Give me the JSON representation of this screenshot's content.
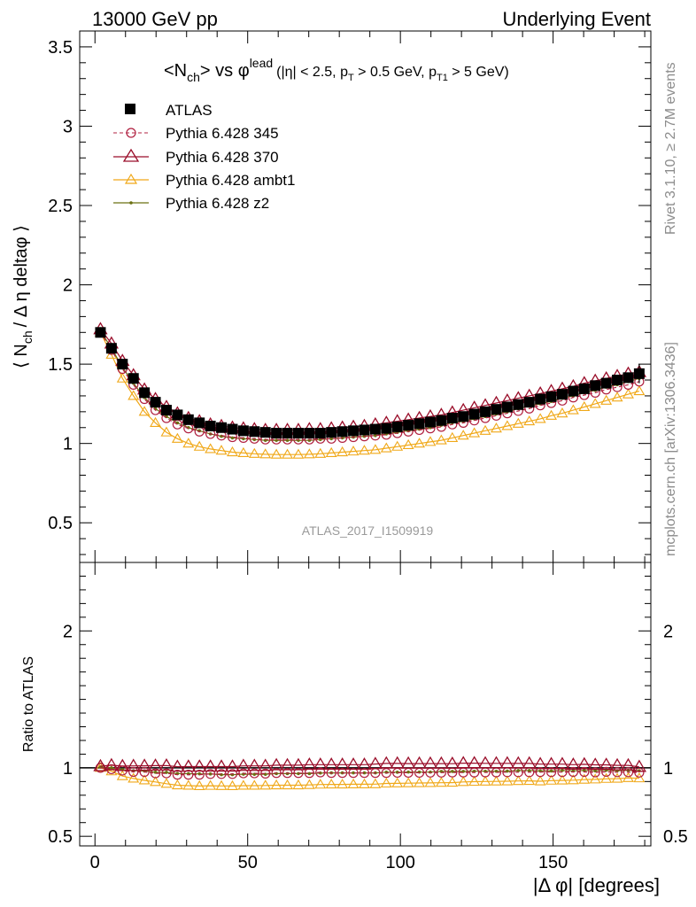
{
  "header": {
    "left": "13000 GeV pp",
    "right": "Underlying Event"
  },
  "side_text": {
    "rivet": "Rivet 3.1.10, ≥ 2.7M events",
    "mcplots": "mcplots.cern.ch [arXiv:1306.3436]"
  },
  "watermark": "ATLAS_2017_I1509919",
  "colors": {
    "atlas": "#000000",
    "p345": "#b02040",
    "p370": "#9a0e2a",
    "ambt1": "#f0a818",
    "z2": "#6b7012"
  },
  "chart_data": [
    {
      "type": "scatter",
      "title": "<Nch> vs φlead (|η| < 2.5, pT > 0.5 GeV, pT1 > 5 GeV)",
      "title_parts": {
        "main": "<N",
        "main_sub": "ch",
        "vs": "> vs φ",
        "vs_sup": "lead",
        "cuts_a": "(|η| < 2.5, p",
        "cuts_sub1": "T",
        "cuts_b": " > 0.5 GeV, p",
        "cuts_sub2": "T1",
        "cuts_c": " > 5 GeV)"
      },
      "ylabel": "⟨ Nch / Δη deltaφ ⟩",
      "ylabel_parts": {
        "a": "⟨ N",
        "sub": "ch",
        "b": "/ Δ η deltaφ ⟩"
      },
      "xlim": [
        -5,
        182
      ],
      "ylim": [
        0.25,
        3.6
      ],
      "yticks": [
        "0.5",
        "1",
        "1.5",
        "2",
        "2.5",
        "3",
        "3.5"
      ],
      "x": [
        1.8,
        5.4,
        9,
        12.6,
        16.2,
        19.8,
        23.4,
        27,
        30.6,
        34.2,
        37.8,
        41.4,
        45,
        48.6,
        52.2,
        55.8,
        59.4,
        63,
        66.6,
        70.2,
        73.8,
        77.4,
        81,
        84.6,
        88.2,
        91.8,
        95.4,
        99,
        102.6,
        106.2,
        109.8,
        113.4,
        117,
        120.6,
        124.2,
        127.8,
        131.4,
        135,
        138.6,
        142.2,
        145.8,
        149.4,
        153,
        156.6,
        160.2,
        163.8,
        167.4,
        171,
        174.6,
        178.2
      ],
      "series": [
        {
          "name": "ATLAS",
          "marker": "square",
          "values": [
            1.7,
            1.6,
            1.5,
            1.41,
            1.32,
            1.26,
            1.21,
            1.18,
            1.15,
            1.13,
            1.11,
            1.1,
            1.09,
            1.08,
            1.075,
            1.07,
            1.065,
            1.065,
            1.065,
            1.065,
            1.065,
            1.07,
            1.075,
            1.08,
            1.085,
            1.09,
            1.095,
            1.105,
            1.115,
            1.125,
            1.135,
            1.145,
            1.16,
            1.17,
            1.185,
            1.2,
            1.215,
            1.23,
            1.245,
            1.26,
            1.28,
            1.295,
            1.31,
            1.33,
            1.345,
            1.365,
            1.38,
            1.4,
            1.415,
            1.44
          ]
        },
        {
          "name": "Pythia 6.428 345",
          "marker": "circle-open",
          "dashed": true,
          "values": [
            1.7,
            1.59,
            1.47,
            1.37,
            1.28,
            1.21,
            1.16,
            1.12,
            1.095,
            1.075,
            1.06,
            1.05,
            1.04,
            1.035,
            1.03,
            1.025,
            1.025,
            1.025,
            1.025,
            1.025,
            1.03,
            1.03,
            1.035,
            1.04,
            1.045,
            1.05,
            1.055,
            1.065,
            1.075,
            1.085,
            1.095,
            1.105,
            1.12,
            1.13,
            1.145,
            1.16,
            1.175,
            1.19,
            1.205,
            1.22,
            1.24,
            1.255,
            1.27,
            1.29,
            1.305,
            1.32,
            1.34,
            1.355,
            1.37,
            1.39
          ]
        },
        {
          "name": "Pythia 6.428 370",
          "marker": "triangle-open-large",
          "values": [
            1.72,
            1.63,
            1.52,
            1.43,
            1.34,
            1.28,
            1.23,
            1.19,
            1.16,
            1.14,
            1.12,
            1.11,
            1.1,
            1.095,
            1.09,
            1.085,
            1.085,
            1.085,
            1.085,
            1.09,
            1.09,
            1.095,
            1.1,
            1.105,
            1.11,
            1.12,
            1.13,
            1.14,
            1.15,
            1.16,
            1.17,
            1.18,
            1.195,
            1.21,
            1.225,
            1.24,
            1.255,
            1.27,
            1.285,
            1.3,
            1.315,
            1.33,
            1.345,
            1.36,
            1.38,
            1.395,
            1.41,
            1.425,
            1.44,
            1.45
          ]
        },
        {
          "name": "Pythia 6.428 ambt1",
          "marker": "triangle-open",
          "values": [
            1.7,
            1.56,
            1.41,
            1.3,
            1.2,
            1.13,
            1.07,
            1.03,
            1.0,
            0.98,
            0.965,
            0.955,
            0.945,
            0.94,
            0.935,
            0.932,
            0.93,
            0.93,
            0.93,
            0.932,
            0.935,
            0.94,
            0.945,
            0.95,
            0.955,
            0.96,
            0.97,
            0.98,
            0.99,
            1.0,
            1.01,
            1.02,
            1.035,
            1.05,
            1.065,
            1.08,
            1.095,
            1.11,
            1.125,
            1.14,
            1.155,
            1.175,
            1.19,
            1.21,
            1.23,
            1.25,
            1.27,
            1.29,
            1.31,
            1.33
          ]
        },
        {
          "name": "Pythia 6.428 z2",
          "marker": "dot",
          "values": [
            1.71,
            1.6,
            1.48,
            1.38,
            1.29,
            1.22,
            1.17,
            1.13,
            1.1,
            1.08,
            1.06,
            1.045,
            1.035,
            1.03,
            1.025,
            1.02,
            1.02,
            1.02,
            1.02,
            1.02,
            1.025,
            1.03,
            1.035,
            1.04,
            1.045,
            1.05,
            1.06,
            1.07,
            1.08,
            1.09,
            1.1,
            1.115,
            1.13,
            1.14,
            1.155,
            1.17,
            1.185,
            1.2,
            1.22,
            1.235,
            1.25,
            1.265,
            1.285,
            1.3,
            1.32,
            1.335,
            1.355,
            1.37,
            1.39,
            1.41
          ]
        }
      ]
    },
    {
      "type": "scatter",
      "title": "",
      "ylabel": "Ratio to ATLAS",
      "xlabel": "|Δ φ| [degrees]",
      "xlim": [
        -5,
        182
      ],
      "ylim": [
        0.43,
        2.5
      ],
      "yticks": [
        "0.5",
        "1",
        "2"
      ],
      "xticks": [
        "0",
        "50",
        "100",
        "150"
      ],
      "x": [
        1.8,
        5.4,
        9,
        12.6,
        16.2,
        19.8,
        23.4,
        27,
        30.6,
        34.2,
        37.8,
        41.4,
        45,
        48.6,
        52.2,
        55.8,
        59.4,
        63,
        66.6,
        70.2,
        73.8,
        77.4,
        81,
        84.6,
        88.2,
        91.8,
        95.4,
        99,
        102.6,
        106.2,
        109.8,
        113.4,
        117,
        120.6,
        124.2,
        127.8,
        131.4,
        135,
        138.6,
        142.2,
        145.8,
        149.4,
        153,
        156.6,
        160.2,
        163.8,
        167.4,
        171,
        174.6,
        178.2
      ],
      "series": [
        {
          "name": "Pythia 6.428 345",
          "values": [
            1.0,
            0.99,
            0.98,
            0.97,
            0.97,
            0.96,
            0.96,
            0.95,
            0.95,
            0.95,
            0.955,
            0.955,
            0.955,
            0.96,
            0.96,
            0.958,
            0.962,
            0.962,
            0.962,
            0.962,
            0.967,
            0.963,
            0.963,
            0.963,
            0.963,
            0.963,
            0.963,
            0.964,
            0.964,
            0.964,
            0.965,
            0.965,
            0.966,
            0.966,
            0.966,
            0.967,
            0.967,
            0.968,
            0.968,
            0.968,
            0.969,
            0.969,
            0.969,
            0.97,
            0.97,
            0.967,
            0.971,
            0.968,
            0.968,
            0.965
          ]
        },
        {
          "name": "Pythia 6.428 370",
          "values": [
            1.012,
            1.019,
            1.013,
            1.014,
            1.015,
            1.016,
            1.017,
            1.008,
            1.009,
            1.009,
            1.009,
            1.009,
            1.009,
            1.014,
            1.014,
            1.014,
            1.019,
            1.019,
            1.019,
            1.023,
            1.023,
            1.023,
            1.023,
            1.023,
            1.023,
            1.028,
            1.032,
            1.032,
            1.031,
            1.031,
            1.031,
            1.031,
            1.03,
            1.034,
            1.034,
            1.033,
            1.033,
            1.033,
            1.032,
            1.032,
            1.027,
            1.027,
            1.027,
            1.023,
            1.026,
            1.022,
            1.022,
            1.018,
            1.018,
            1.007
          ]
        },
        {
          "name": "Pythia 6.428 ambt1",
          "values": [
            1.0,
            0.975,
            0.94,
            0.922,
            0.909,
            0.897,
            0.884,
            0.873,
            0.87,
            0.867,
            0.869,
            0.868,
            0.867,
            0.87,
            0.87,
            0.871,
            0.873,
            0.873,
            0.873,
            0.875,
            0.878,
            0.879,
            0.879,
            0.88,
            0.88,
            0.881,
            0.886,
            0.887,
            0.888,
            0.889,
            0.89,
            0.891,
            0.892,
            0.897,
            0.899,
            0.9,
            0.901,
            0.902,
            0.904,
            0.905,
            0.902,
            0.907,
            0.908,
            0.91,
            0.914,
            0.916,
            0.92,
            0.921,
            0.926,
            0.924
          ]
        },
        {
          "name": "Pythia 6.428 z2",
          "values": [
            1.006,
            1.0,
            0.987,
            0.979,
            0.977,
            0.968,
            0.967,
            0.958,
            0.957,
            0.956,
            0.955,
            0.95,
            0.95,
            0.954,
            0.953,
            0.953,
            0.958,
            0.958,
            0.958,
            0.958,
            0.962,
            0.963,
            0.963,
            0.963,
            0.963,
            0.963,
            0.968,
            0.968,
            0.969,
            0.969,
            0.969,
            0.974,
            0.974,
            0.974,
            0.975,
            0.975,
            0.975,
            0.976,
            0.98,
            0.98,
            0.977,
            0.977,
            0.981,
            0.977,
            0.981,
            0.978,
            0.982,
            0.979,
            0.982,
            0.979
          ]
        }
      ]
    }
  ]
}
